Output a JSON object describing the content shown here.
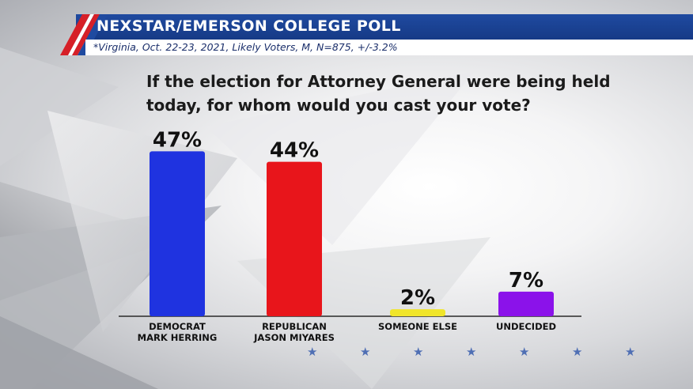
{
  "header": {
    "title": "NEXSTAR/EMERSON COLLEGE POLL",
    "subtitle": "*Virginia, Oct. 22-23, 2021, Likely Voters, M, N=875, +/-3.2%",
    "stripe_colors": [
      "#d62028",
      "#ffffff",
      "#1f4aa0"
    ]
  },
  "question": "If the election for Attorney General were being held today, for whom would you cast your vote?",
  "chart_data": {
    "type": "bar",
    "title": "If the election for Attorney General were being held today, for whom would you cast your vote?",
    "categories": [
      "DEMOCRAT\nMARK HERRING",
      "REPUBLICAN\nJASON MIYARES",
      "SOMEONE ELSE",
      "UNDECIDED"
    ],
    "values": [
      47,
      44,
      2,
      7
    ],
    "value_labels": [
      "47%",
      "44%",
      "2%",
      "7%"
    ],
    "colors": [
      "#1f33e0",
      "#e8151b",
      "#f0e52a",
      "#8b12ea"
    ],
    "ylim": [
      0,
      50
    ],
    "xlabel": "",
    "ylabel": "",
    "grid": false,
    "legend": "none"
  },
  "decor": {
    "star_icon": "star-icon",
    "star_count": 7
  }
}
